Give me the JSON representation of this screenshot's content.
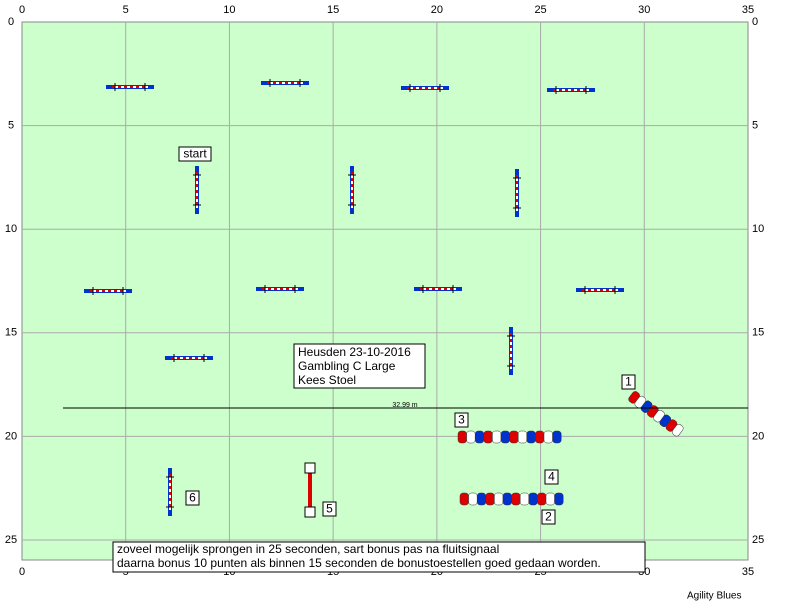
{
  "axes": {
    "x_ticks": [
      0,
      5,
      10,
      15,
      20,
      25,
      30,
      35
    ],
    "y_ticks": [
      0,
      5,
      10,
      15,
      20,
      25
    ]
  },
  "labels": {
    "start": "start",
    "numbers": [
      "1",
      "2",
      "3",
      "4",
      "5",
      "6"
    ]
  },
  "info": [
    "Heusden 23-10-2016",
    "Gambling C Large",
    "Kees Stoel"
  ],
  "distance": "32.99 m",
  "note": [
    "zoveel mogelijk sprongen in 25 seconden, sart bonus pas na fluitsignaal",
    "daarna bonus 10 punten als binnen 15 seconden de bonustoestellen goed gedaan worden."
  ],
  "footer": "Agility Blues"
}
